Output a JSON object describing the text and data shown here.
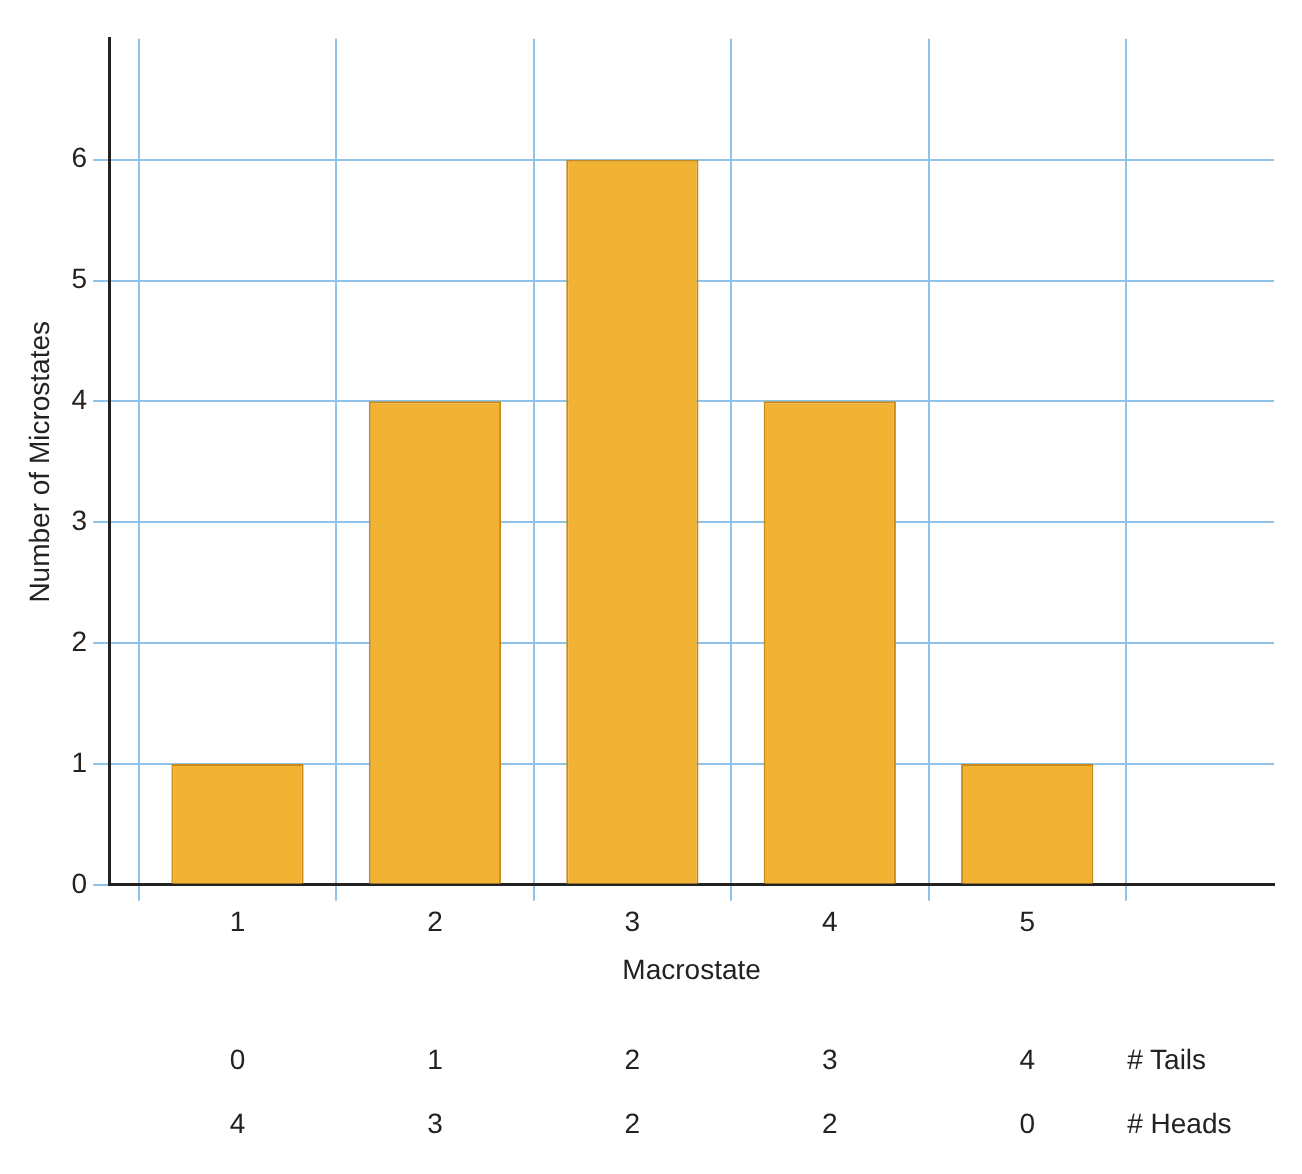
{
  "chart_data": {
    "type": "bar",
    "xlabel": "Macrostate",
    "ylabel": "Number of Microstates",
    "x": [
      1,
      2,
      3,
      4,
      5
    ],
    "values": [
      1,
      4,
      6,
      4,
      1
    ],
    "color": "#f2b233",
    "xlim": [
      0.35,
      6.25
    ],
    "xticks": [
      1,
      2,
      3,
      4,
      5
    ],
    "ylim": [
      0,
      7
    ],
    "yticks": [
      0,
      1,
      2,
      3,
      4,
      5,
      6
    ],
    "grid": true,
    "legend": false,
    "annotations": [
      "0",
      "1",
      "2",
      "3",
      "4",
      "# Tails",
      "4",
      "3",
      "2",
      "2",
      "0",
      "# Heads"
    ]
  }
}
